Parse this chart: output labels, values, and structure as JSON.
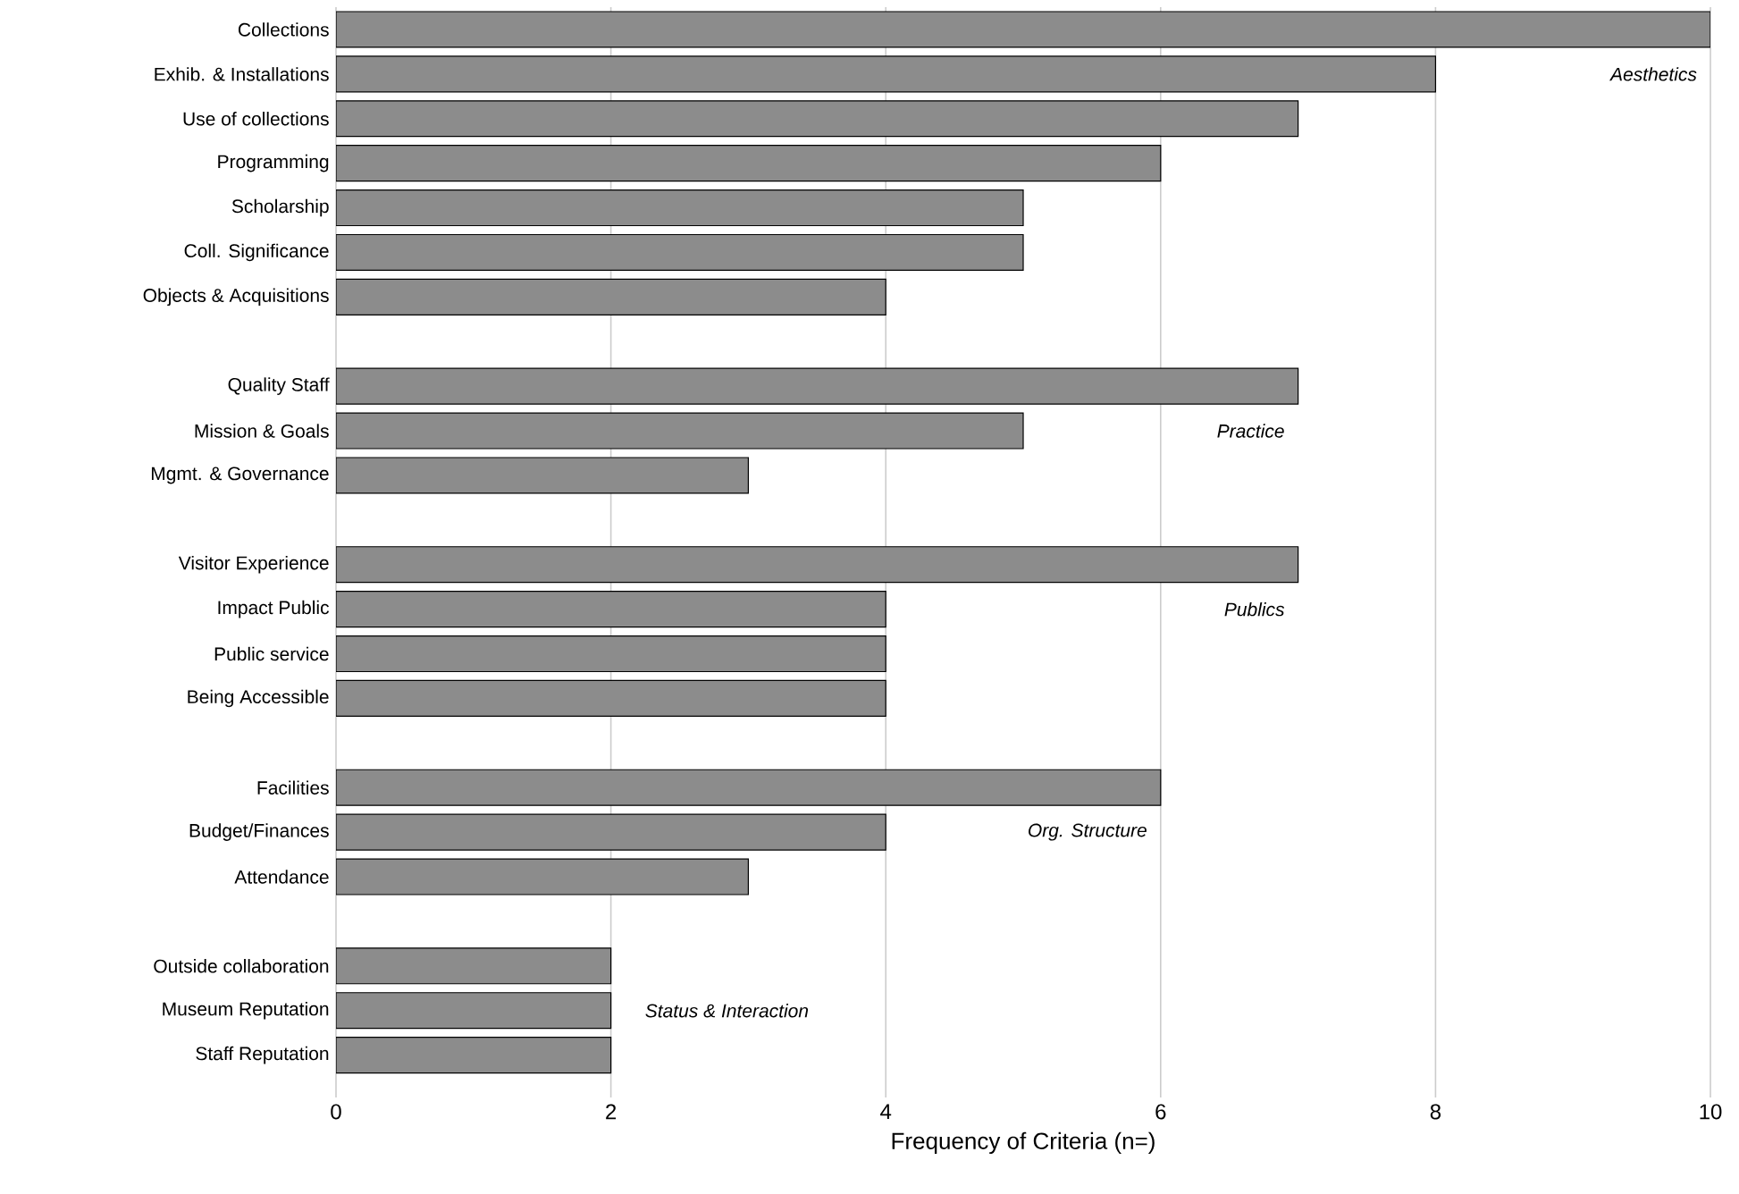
{
  "chart_data": {
    "type": "bar",
    "orientation": "horizontal",
    "xlabel": "Frequency of Criteria (n=)",
    "categories": [
      "Collections",
      "Exhib. & Installations",
      "Use of collections",
      "Programming",
      "Scholarship",
      "Coll. Significance",
      "Objects & Acquisitions",
      null,
      "Quality Staff",
      "Mission & Goals",
      "Mgmt. & Governance",
      null,
      "Visitor Experience",
      "Impact Public",
      "Public service",
      "Being Accessible",
      null,
      "Facilities",
      "Budget/Finances",
      "Attendance",
      null,
      "Outside collaboration",
      "Museum Reputation",
      "Staff Reputation"
    ],
    "values": [
      10,
      8,
      7,
      6,
      5,
      5,
      4,
      null,
      7,
      5,
      3,
      null,
      7,
      4,
      4,
      4,
      null,
      6,
      4,
      3,
      null,
      2,
      2,
      2
    ],
    "color": "#8c8c8c",
    "xlim": [
      0,
      10
    ],
    "xticks": [
      0,
      2,
      4,
      6,
      8,
      10
    ],
    "grid": "x",
    "annotations": [
      "Aesthetics",
      "Practice",
      "Publics",
      "Org. Structure",
      "Status & Interaction"
    ]
  }
}
